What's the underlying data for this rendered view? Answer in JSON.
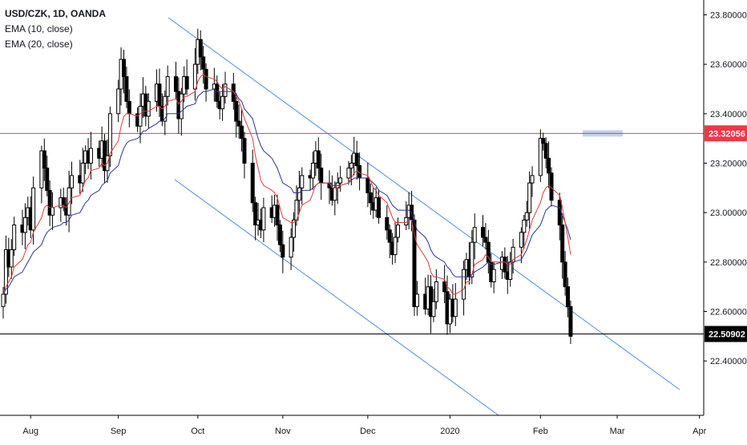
{
  "legend": {
    "symbol_line": "USD/CZK, 1D, OANDA",
    "ema_fast": "EMA (10, close)",
    "ema_slow": "EMA (20, close)"
  },
  "colors": {
    "candle_up": "#ffffff",
    "candle_down": "#000000",
    "candle_border": "#000000",
    "ema_fast": "#e53935",
    "ema_slow": "#283593",
    "channel": "#4a90e2",
    "resistance": "#f23645",
    "price_line": "#000000",
    "resistance_zone": "#b3c8e8"
  },
  "chart_data": {
    "type": "candlestick",
    "symbol": "USD/CZK",
    "interval": "1D",
    "source": "OANDA",
    "ylim": [
      22.18,
      23.86
    ],
    "y_ticks": [
      "23.80000",
      "23.60000",
      "23.40000",
      "23.20000",
      "23.00000",
      "22.80000",
      "22.60000",
      "22.40000"
    ],
    "x_ticks": [
      "Aug",
      "Sep",
      "Oct",
      "Nov",
      "Dec",
      "2020",
      "Feb",
      "Mar",
      "Apr"
    ],
    "start_date": "2019-07-22",
    "x_tick_dates": [
      "2019-08-01",
      "2019-09-02",
      "2019-10-01",
      "2019-11-01",
      "2019-12-02",
      "2020-01-01",
      "2020-02-03",
      "2020-03-02",
      "2020-04-01"
    ],
    "resistance_level": {
      "value": 23.32056,
      "label": "23.32056"
    },
    "last_price": {
      "value": 22.50902,
      "label": "22.50902"
    },
    "closes": [
      22.67,
      22.85,
      22.78,
      22.85,
      22.95,
      22.92,
      22.98,
      23.02,
      22.93,
      23.1,
      23.25,
      23.18,
      23.09,
      22.99,
      23.02,
      23.06,
      23.03,
      22.99,
      23.1,
      23.15,
      23.12,
      23.2,
      23.25,
      23.2,
      23.26,
      23.22,
      23.29,
      23.17,
      23.23,
      23.4,
      23.5,
      23.62,
      23.55,
      23.45,
      23.4,
      23.35,
      23.43,
      23.48,
      23.39,
      23.45,
      23.52,
      23.43,
      23.37,
      23.47,
      23.55,
      23.49,
      23.38,
      23.48,
      23.55,
      23.5,
      23.6,
      23.7,
      23.63,
      23.58,
      23.5,
      23.52,
      23.45,
      23.42,
      23.47,
      23.52,
      23.45,
      23.37,
      23.35,
      23.3,
      23.2,
      23.04,
      22.95,
      22.97,
      22.93,
      23.02,
      22.98,
      23.03,
      22.95,
      22.87,
      22.82,
      22.9,
      22.97,
      23.05,
      23.1,
      23.15,
      23.14,
      23.2,
      23.25,
      23.18,
      23.12,
      23.1,
      23.05,
      23.1,
      23.12,
      23.14,
      23.18,
      23.2,
      23.24,
      23.19,
      23.14,
      23.08,
      23.04,
      23.01,
      23.06,
      22.98,
      22.93,
      22.88,
      22.83,
      22.9,
      22.95,
      22.98,
      23.03,
      22.97,
      22.62,
      22.67,
      22.61,
      22.7,
      22.58,
      22.64,
      22.72,
      22.68,
      22.55,
      22.65,
      22.58,
      22.65,
      22.77,
      22.81,
      22.74,
      22.88,
      22.94,
      22.9,
      22.88,
      22.8,
      22.72,
      22.77,
      22.82,
      22.76,
      22.73,
      22.8,
      22.86,
      22.92,
      22.97,
      23.0,
      23.12,
      23.15,
      23.3,
      23.28,
      23.22,
      23.16,
      23.05,
      22.95,
      22.8,
      22.7,
      22.62,
      22.5
    ],
    "ema_10": [
      22.67,
      22.7,
      22.72,
      22.74,
      22.78,
      22.81,
      22.84,
      22.87,
      22.88,
      22.92,
      22.98,
      23.02,
      23.03,
      23.02,
      23.02,
      23.03,
      23.03,
      23.02,
      23.04,
      23.06,
      23.07,
      23.1,
      23.13,
      23.14,
      23.17,
      23.18,
      23.2,
      23.19,
      23.2,
      23.24,
      23.29,
      23.35,
      23.39,
      23.4,
      23.4,
      23.39,
      23.4,
      23.41,
      23.41,
      23.41,
      23.43,
      23.43,
      23.42,
      23.43,
      23.45,
      23.46,
      23.44,
      23.45,
      23.47,
      23.47,
      23.49,
      23.53,
      23.55,
      23.56,
      23.55,
      23.54,
      23.53,
      23.51,
      23.5,
      23.51,
      23.49,
      23.47,
      23.45,
      23.42,
      23.38,
      23.3,
      23.23,
      23.18,
      23.13,
      23.11,
      23.09,
      23.08,
      23.06,
      23.02,
      22.98,
      22.96,
      22.96,
      22.97,
      23.0,
      23.03,
      23.05,
      23.08,
      23.11,
      23.12,
      23.12,
      23.12,
      23.1,
      23.1,
      23.1,
      23.11,
      23.12,
      23.14,
      23.16,
      23.17,
      23.16,
      23.15,
      23.13,
      23.1,
      23.09,
      23.07,
      23.04,
      23.01,
      22.98,
      22.96,
      22.96,
      22.96,
      22.97,
      22.97,
      22.91,
      22.87,
      22.82,
      22.8,
      22.76,
      22.74,
      22.74,
      22.73,
      22.7,
      22.69,
      22.67,
      22.67,
      22.69,
      22.72,
      22.72,
      22.75,
      22.79,
      22.81,
      22.83,
      22.82,
      22.8,
      22.8,
      22.8,
      22.8,
      22.79,
      22.79,
      22.81,
      22.83,
      22.86,
      22.89,
      22.93,
      22.97,
      23.04,
      23.08,
      23.1,
      23.11,
      23.1,
      23.07,
      23.02,
      22.96,
      22.9,
      22.83
    ],
    "ema_20": [
      22.67,
      22.69,
      22.7,
      22.72,
      22.74,
      22.76,
      22.78,
      22.8,
      22.82,
      22.84,
      22.87,
      22.9,
      22.92,
      22.93,
      22.94,
      22.95,
      22.96,
      22.96,
      22.97,
      22.99,
      23.0,
      23.02,
      23.04,
      23.05,
      23.07,
      23.09,
      23.11,
      23.12,
      23.13,
      23.16,
      23.19,
      23.23,
      23.26,
      23.28,
      23.29,
      23.3,
      23.31,
      23.33,
      23.33,
      23.34,
      23.36,
      23.37,
      23.37,
      23.38,
      23.4,
      23.4,
      23.4,
      23.41,
      23.42,
      23.43,
      23.44,
      23.47,
      23.48,
      23.49,
      23.49,
      23.5,
      23.49,
      23.49,
      23.49,
      23.49,
      23.49,
      23.48,
      23.46,
      23.45,
      23.42,
      23.38,
      23.34,
      23.3,
      23.27,
      23.25,
      23.22,
      23.2,
      23.18,
      23.15,
      23.12,
      23.1,
      23.08,
      23.08,
      23.08,
      23.09,
      23.09,
      23.1,
      23.11,
      23.12,
      23.12,
      23.12,
      23.11,
      23.11,
      23.11,
      23.11,
      23.12,
      23.13,
      23.14,
      23.14,
      23.14,
      23.14,
      23.13,
      23.12,
      23.11,
      23.09,
      23.07,
      23.05,
      23.03,
      23.02,
      23.01,
      23.01,
      23.01,
      23.0,
      22.96,
      22.93,
      22.9,
      22.88,
      22.85,
      22.83,
      22.82,
      22.8,
      22.78,
      22.77,
      22.75,
      22.74,
      22.74,
      22.74,
      22.74,
      22.75,
      22.76,
      22.78,
      22.79,
      22.8,
      22.79,
      22.79,
      22.8,
      22.8,
      22.79,
      22.8,
      22.8,
      22.81,
      22.83,
      22.85,
      22.88,
      22.91,
      22.95,
      22.98,
      23.01,
      23.02,
      23.03,
      23.02,
      22.99,
      22.96,
      22.93,
      22.89
    ]
  }
}
